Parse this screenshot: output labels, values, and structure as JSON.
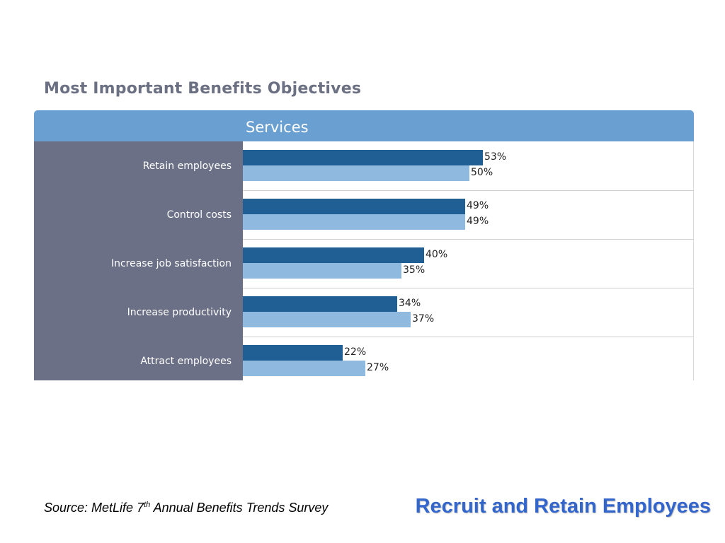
{
  "chart_data": {
    "type": "bar",
    "orientation": "horizontal",
    "title": "Most Important Benefits Objectives",
    "subtitle": "Services",
    "categories": [
      "Retain employees",
      "Control costs",
      "Increase job satisfaction",
      "Increase productivity",
      "Attract employees"
    ],
    "series": [
      {
        "values": [
          53,
          49,
          40,
          34,
          22
        ],
        "value_labels": [
          "53%",
          "49%",
          "40%",
          "34%",
          "22%"
        ],
        "color": "#1f5f94"
      },
      {
        "values": [
          50,
          49,
          35,
          37,
          27
        ],
        "value_labels": [
          "50%",
          "49%",
          "35%",
          "37%",
          "27%"
        ],
        "color": "#8fb9de"
      }
    ],
    "xlim": [
      0,
      100
    ],
    "grid": false,
    "legend": false
  },
  "footer": {
    "source_prefix": "Source: MetLife 7",
    "source_sup": "th",
    "source_suffix": " Annual Benefits Trends Survey",
    "slide_title": "Recruit and Retain Employees"
  },
  "colors": {
    "header": "#6a9fd1",
    "label_column": "#6b7087",
    "title_text": "#6b7083",
    "slide_title": "#3366cc"
  }
}
